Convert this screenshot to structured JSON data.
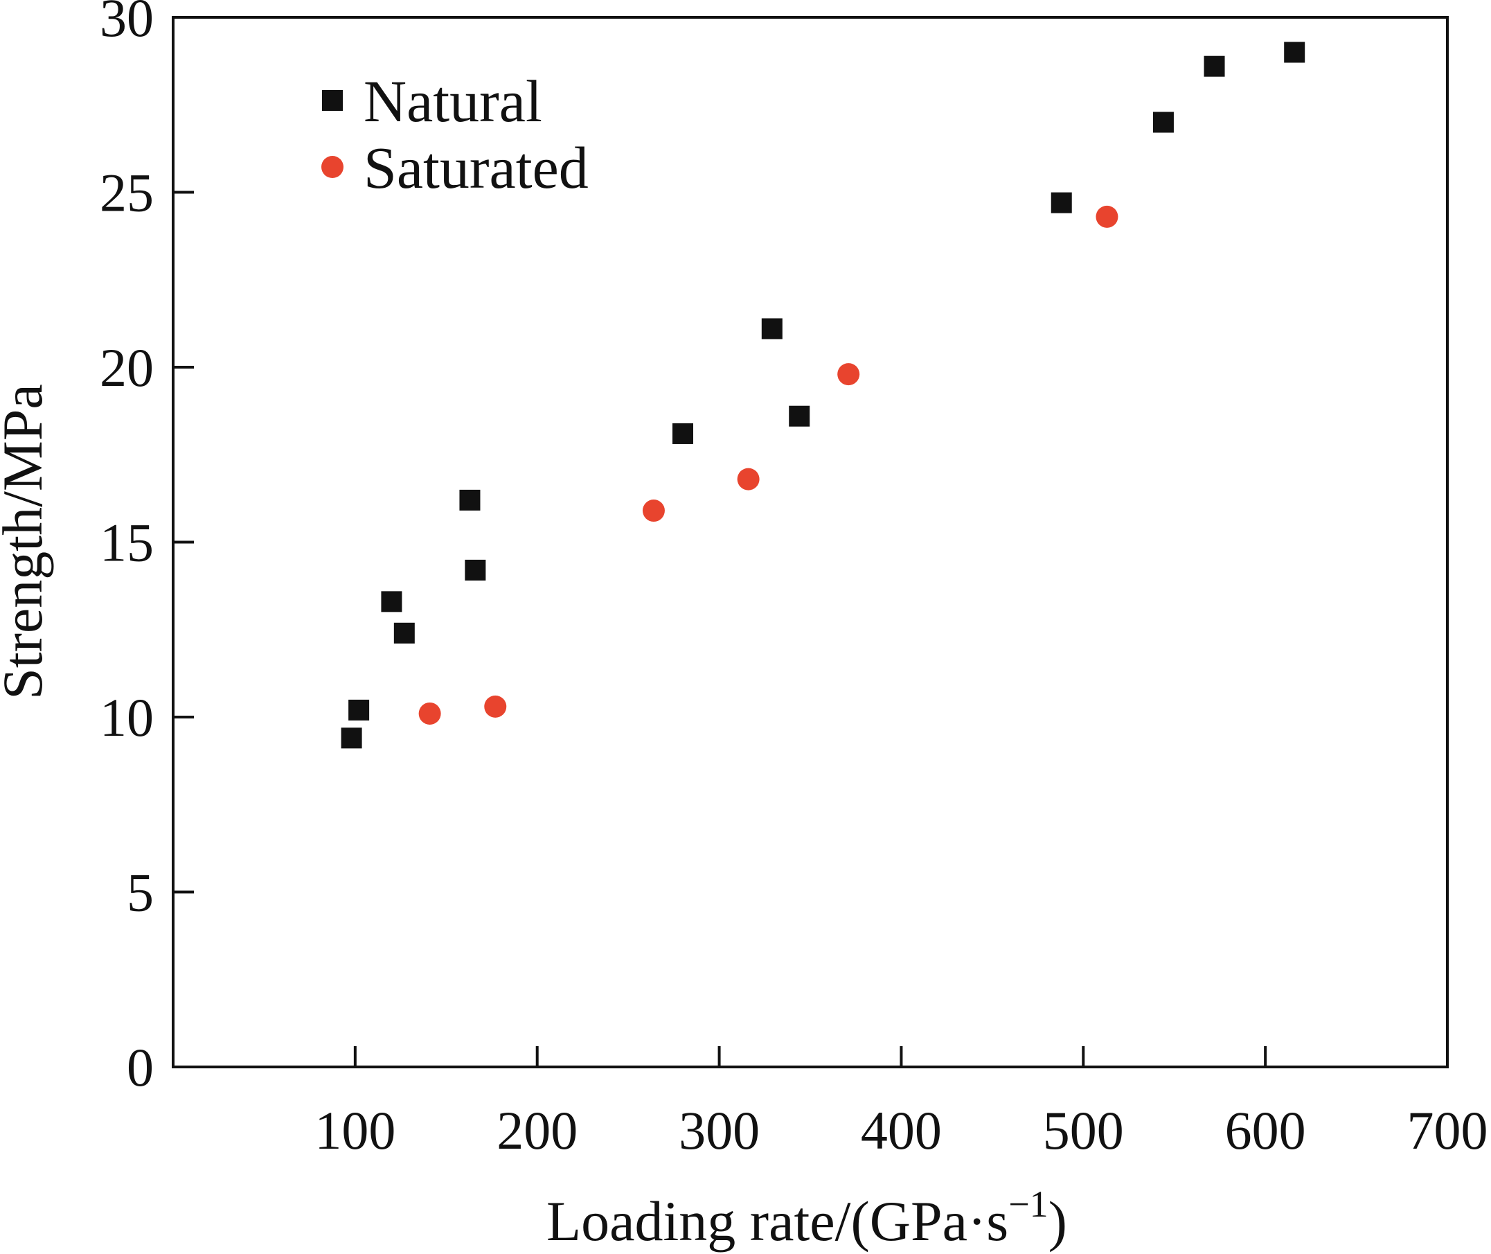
{
  "chart_data": {
    "type": "scatter",
    "xlabel": "Loading rate/(GPa·s",
    "xlabel_sup": "−1",
    "xlabel_tail": ")",
    "ylabel": "Strength/MPa",
    "xlim": [
      0,
      700
    ],
    "ylim": [
      0,
      30
    ],
    "xticks": [
      100,
      200,
      300,
      400,
      500,
      600,
      700
    ],
    "yticks": [
      0,
      5,
      10,
      15,
      20,
      25,
      30
    ],
    "grid": false,
    "legend_position": "top-left",
    "series": [
      {
        "name": "Natural",
        "marker": "square",
        "color": "#111111",
        "points": [
          {
            "x": 98,
            "y": 9.4
          },
          {
            "x": 102,
            "y": 10.2
          },
          {
            "x": 120,
            "y": 13.3
          },
          {
            "x": 127,
            "y": 12.4
          },
          {
            "x": 163,
            "y": 16.2
          },
          {
            "x": 166,
            "y": 14.2
          },
          {
            "x": 280,
            "y": 18.1
          },
          {
            "x": 329,
            "y": 21.1
          },
          {
            "x": 344,
            "y": 18.6
          },
          {
            "x": 488,
            "y": 24.7
          },
          {
            "x": 544,
            "y": 27.0
          },
          {
            "x": 572,
            "y": 28.6
          },
          {
            "x": 616,
            "y": 29.0
          }
        ]
      },
      {
        "name": "Saturated",
        "marker": "circle",
        "color": "#e8442e",
        "points": [
          {
            "x": 141,
            "y": 10.1
          },
          {
            "x": 177,
            "y": 10.3
          },
          {
            "x": 264,
            "y": 15.9
          },
          {
            "x": 316,
            "y": 16.8
          },
          {
            "x": 371,
            "y": 19.8
          },
          {
            "x": 513,
            "y": 24.3
          }
        ]
      }
    ]
  }
}
